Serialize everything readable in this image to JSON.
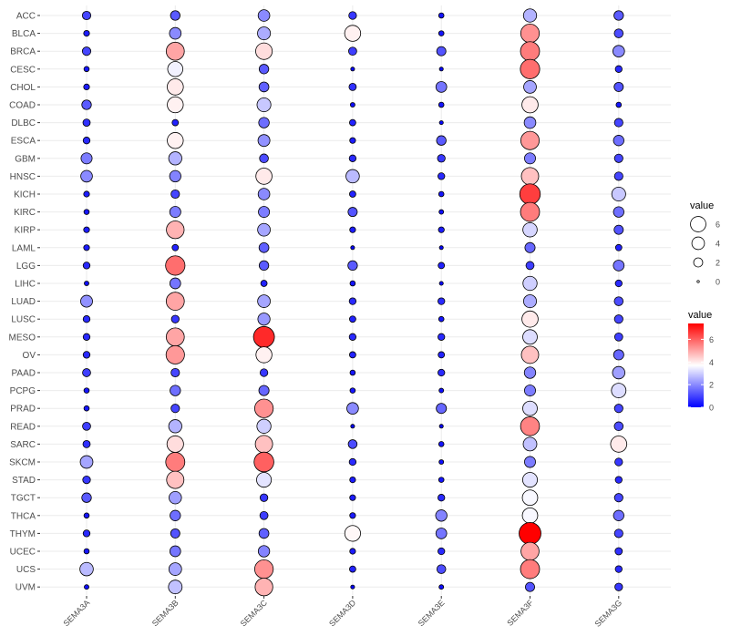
{
  "chart_data": {
    "type": "scatter",
    "x_categories": [
      "SEMA3A",
      "SEMA3B",
      "SEMA3C",
      "SEMA3D",
      "SEMA3E",
      "SEMA3F",
      "SEMA3G"
    ],
    "y_categories": [
      "ACC",
      "BLCA",
      "BRCA",
      "CESC",
      "CHOL",
      "COAD",
      "DLBC",
      "ESCA",
      "GBM",
      "HNSC",
      "KICH",
      "KIRC",
      "KIRP",
      "LAML",
      "LGG",
      "LIHC",
      "LUAD",
      "LUSC",
      "MESO",
      "OV",
      "PAAD",
      "PCPG",
      "PRAD",
      "READ",
      "SARC",
      "SKCM",
      "STAD",
      "TGCT",
      "THCA",
      "THYM",
      "UCEC",
      "UCS",
      "UVM"
    ],
    "values": [
      [
        1.0,
        1.3,
        2.0,
        0.8,
        0.3,
        2.6,
        1.3
      ],
      [
        0.4,
        2.0,
        2.5,
        3.9,
        0.3,
        5.3,
        1.1
      ],
      [
        1.0,
        5.0,
        4.2,
        0.9,
        1.2,
        5.6,
        2.0
      ],
      [
        0.3,
        3.5,
        1.3,
        0.1,
        0.1,
        5.8,
        0.6
      ],
      [
        0.4,
        4.0,
        1.4,
        0.7,
        1.7,
        2.4,
        1.2
      ],
      [
        1.3,
        3.9,
        2.9,
        0.2,
        0.3,
        4.0,
        0.3
      ],
      [
        0.7,
        0.5,
        1.6,
        0.5,
        0.1,
        2.0,
        1.0
      ],
      [
        0.6,
        3.9,
        2.1,
        0.4,
        1.3,
        5.2,
        1.6
      ],
      [
        1.8,
        2.6,
        1.1,
        0.6,
        0.8,
        1.8,
        1.0
      ],
      [
        2.0,
        1.9,
        4.0,
        2.7,
        0.6,
        4.6,
        1.0
      ],
      [
        0.4,
        1.0,
        2.0,
        0.5,
        0.3,
        6.5,
        2.9
      ],
      [
        0.3,
        1.8,
        1.8,
        1.2,
        0.2,
        5.6,
        1.6
      ],
      [
        0.4,
        4.8,
        2.4,
        0.4,
        0.4,
        3.1,
        1.2
      ],
      [
        0.4,
        0.5,
        1.4,
        0.1,
        0.1,
        1.5,
        0.5
      ],
      [
        0.6,
        5.8,
        1.3,
        1.3,
        0.5,
        0.9,
        1.7
      ],
      [
        0.2,
        1.7,
        0.5,
        0.3,
        0.1,
        3.0,
        0.6
      ],
      [
        2.1,
        5.0,
        2.4,
        0.6,
        0.6,
        2.5,
        1.1
      ],
      [
        0.6,
        0.8,
        2.2,
        0.5,
        0.3,
        4.0,
        1.0
      ],
      [
        0.6,
        5.0,
        6.8,
        0.6,
        0.6,
        3.2,
        0.9
      ],
      [
        0.6,
        5.2,
        3.9,
        0.5,
        0.5,
        4.6,
        1.5
      ],
      [
        0.9,
        1.0,
        0.8,
        0.3,
        0.6,
        1.9,
        2.3
      ],
      [
        0.3,
        1.6,
        1.5,
        0.3,
        0.2,
        1.8,
        3.2
      ],
      [
        0.3,
        1.0,
        5.3,
        2.0,
        1.5,
        3.2,
        1.0
      ],
      [
        0.9,
        2.6,
        3.0,
        0.1,
        0.1,
        5.5,
        1.1
      ],
      [
        0.7,
        4.2,
        4.6,
        1.1,
        0.3,
        2.8,
        4.0
      ],
      [
        2.4,
        5.6,
        6.0,
        0.6,
        0.2,
        1.8,
        0.8
      ],
      [
        0.8,
        4.6,
        3.3,
        0.4,
        0.3,
        3.3,
        0.6
      ],
      [
        1.3,
        2.3,
        0.8,
        0.4,
        0.6,
        3.6,
        1.0
      ],
      [
        0.3,
        1.6,
        0.9,
        0.4,
        1.9,
        3.6,
        1.6
      ],
      [
        0.6,
        1.2,
        1.4,
        3.8,
        1.7,
        7.4,
        1.0
      ],
      [
        0.3,
        1.7,
        1.9,
        0.4,
        0.6,
        5.0,
        0.7
      ],
      [
        2.7,
        2.4,
        5.3,
        0.5,
        1.1,
        5.6,
        0.6
      ],
      [
        0.2,
        2.8,
        4.8,
        0.1,
        0.2,
        1.2,
        0.8
      ]
    ],
    "size_legend": {
      "title": "value",
      "breaks": [
        6,
        4,
        2,
        0
      ]
    },
    "color_legend": {
      "title": "value",
      "breaks": [
        6,
        4,
        2,
        0
      ],
      "range": [
        0,
        7.4
      ],
      "low": "#0000FF",
      "mid": "#FFFFFF",
      "high": "#FF0000",
      "midpoint": 3.7
    },
    "grid": true,
    "legend_position": "right",
    "colors": {
      "grid": "#EBEBEB",
      "axis_text": "#4D4D4D",
      "point_outline": "#000000"
    }
  }
}
